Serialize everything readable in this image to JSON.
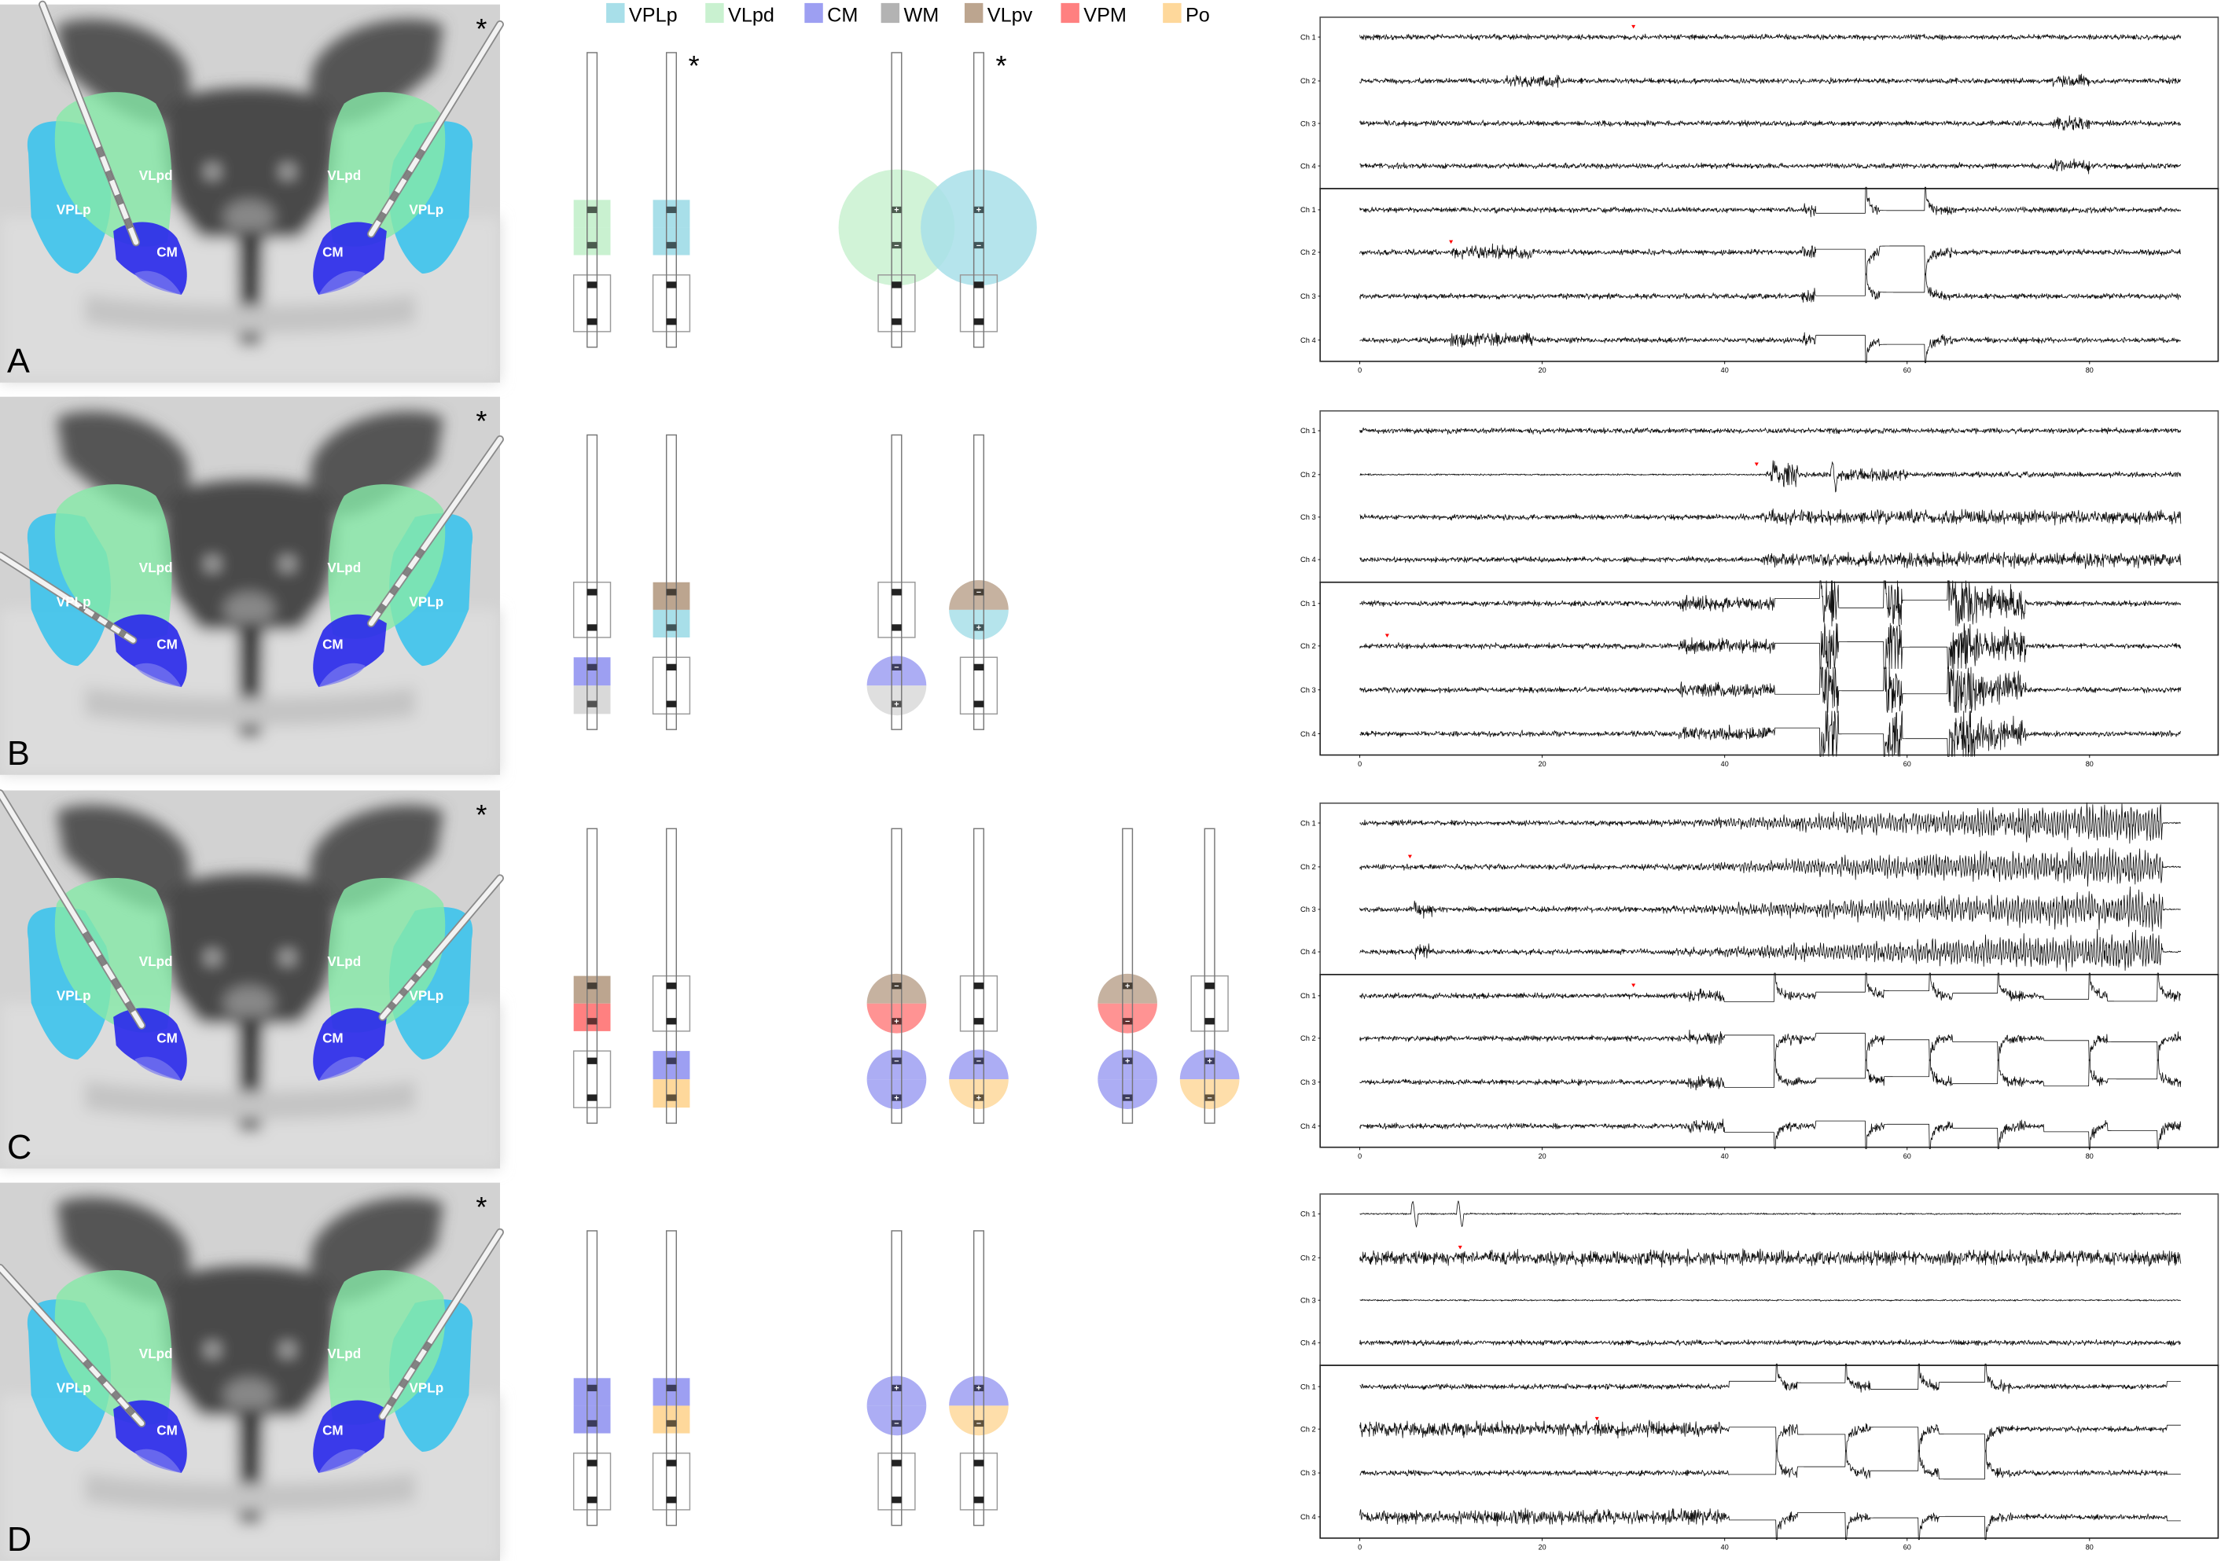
{
  "legend": [
    {
      "name": "VPLp",
      "color": "#a8dfe9"
    },
    {
      "name": "VLpd",
      "color": "#c9f1d0"
    },
    {
      "name": "CM",
      "color": "#9d9ff2"
    },
    {
      "name": "WM",
      "color": "#d9d9d9"
    },
    {
      "name": "VLpv",
      "color": "#bca58f"
    },
    {
      "name": "VPM",
      "color": "#ff8080"
    },
    {
      "name": "Po",
      "color": "#fed89b"
    }
  ],
  "legend_swatch_colors": {
    "WM": "#b3b3b3"
  },
  "brain_labels": {
    "vplp": "VPLp",
    "vlpd": "VLpd",
    "cm": "CM"
  },
  "brain_colors": {
    "vplp": "#3cc3ec",
    "vlpd": "#86eaa8",
    "cm": "#2b2bea"
  },
  "asterisk": "*",
  "polarity_symbols": {
    "plus": "+",
    "minus": "−"
  },
  "rows": [
    {
      "label": "A",
      "groups": [
        {
          "kind": "recording",
          "leads": [
            {
              "upper": [
                "VLpd",
                "VLpd"
              ],
              "lower": null
            },
            {
              "upper": [
                "VPLp",
                "VPLp"
              ],
              "lower": null,
              "asterisk": true
            }
          ]
        },
        {
          "kind": "stimulation",
          "field_size": "large",
          "leads": [
            {
              "upper": [
                "VLpd",
                "VLpd"
              ],
              "upper_polarity": [
                "+",
                "−"
              ],
              "lower": null
            },
            {
              "upper": [
                "VPLp",
                "VPLp"
              ],
              "upper_polarity": [
                "+",
                "−"
              ],
              "lower": null,
              "asterisk": true
            }
          ]
        }
      ]
    },
    {
      "label": "B",
      "groups": [
        {
          "kind": "recording",
          "leads": [
            {
              "upper": null,
              "lower": [
                "CM",
                "WM"
              ]
            },
            {
              "upper": [
                "VLpv",
                "VPLp"
              ],
              "lower": null
            }
          ]
        },
        {
          "kind": "stimulation",
          "leads": [
            {
              "upper": null,
              "lower": [
                "CM",
                "WM"
              ],
              "lower_polarity": [
                "−",
                "+"
              ]
            },
            {
              "upper": [
                "VLpv",
                "VPLp"
              ],
              "upper_polarity": [
                "−",
                "+"
              ],
              "lower": null
            }
          ]
        }
      ]
    },
    {
      "label": "C",
      "groups": [
        {
          "kind": "recording",
          "leads": [
            {
              "upper": [
                "VLpv",
                "VPM"
              ],
              "lower": null
            },
            {
              "upper": null,
              "lower": [
                "CM",
                "Po"
              ]
            }
          ]
        },
        {
          "kind": "stimulation",
          "leads": [
            {
              "upper": [
                "VLpv",
                "VPM"
              ],
              "upper_polarity": [
                "−",
                "+"
              ],
              "lower": [
                "CM",
                "CM"
              ],
              "lower_polarity": [
                "−",
                "+"
              ]
            },
            {
              "upper": null,
              "lower": [
                "CM",
                "Po"
              ],
              "lower_polarity": [
                "−",
                "+"
              ]
            }
          ]
        },
        {
          "kind": "stimulation",
          "leads": [
            {
              "upper": [
                "VLpv",
                "VPM"
              ],
              "upper_polarity": [
                "+",
                "−"
              ],
              "lower": [
                "CM",
                "CM"
              ],
              "lower_polarity": [
                "+",
                "−"
              ]
            },
            {
              "upper": null,
              "lower": [
                "CM",
                "Po"
              ],
              "lower_polarity": [
                "+",
                "−"
              ]
            }
          ]
        }
      ]
    },
    {
      "label": "D",
      "groups": [
        {
          "kind": "recording",
          "leads": [
            {
              "upper": [
                "CM",
                "CM"
              ],
              "lower": null
            },
            {
              "upper": [
                "CM",
                "Po"
              ],
              "lower": null
            }
          ]
        },
        {
          "kind": "stimulation",
          "leads": [
            {
              "upper": [
                "CM",
                "CM"
              ],
              "upper_polarity": [
                "+",
                "−"
              ],
              "lower": null
            },
            {
              "upper": [
                "CM",
                "Po"
              ],
              "upper_polarity": [
                "+",
                "−"
              ],
              "lower": null
            }
          ]
        }
      ]
    }
  ],
  "chart_data": [
    {
      "type": "line",
      "panel": "A",
      "subplots": [
        {
          "channels": [
            "Ch 1",
            "Ch 2",
            "Ch 3",
            "Ch 4"
          ],
          "marker": {
            "channel": 1,
            "time": 30
          },
          "events": [
            {
              "type": "burst",
              "start": 16,
              "end": 22,
              "channels": [
                2
              ]
            },
            {
              "type": "burst",
              "start": 76,
              "end": 80,
              "channels": [
                2,
                3,
                4
              ]
            }
          ]
        },
        {
          "channels": [
            "Ch 1",
            "Ch 2",
            "Ch 3",
            "Ch 4"
          ],
          "marker": {
            "channel": 2,
            "time": 10
          },
          "events": [
            {
              "type": "burst",
              "start": 10,
              "end": 19,
              "channels": [
                2,
                4
              ]
            },
            {
              "type": "burst",
              "start": 48.5,
              "end": 50
            },
            {
              "type": "flat",
              "start": 50,
              "end": 55.5
            },
            {
              "type": "flat",
              "start": 57,
              "end": 62
            },
            {
              "type": "pulse",
              "time": 55.5
            },
            {
              "type": "pulse",
              "time": 62
            }
          ]
        }
      ],
      "xticks": [
        0,
        20,
        40,
        60,
        80
      ],
      "xlim": [
        0,
        90
      ]
    },
    {
      "type": "line",
      "panel": "B",
      "subplots": [
        {
          "channels": [
            "Ch 1",
            "Ch 2",
            "Ch 3",
            "Ch 4"
          ],
          "marker": {
            "channel": 2,
            "time": 43.5
          },
          "events": [
            {
              "type": "quiet",
              "start": 0,
              "end": 44.5,
              "channels": [
                2
              ]
            },
            {
              "type": "artifact",
              "start": 45,
              "end": 48,
              "channels": [
                2
              ]
            },
            {
              "type": "spike",
              "time": 52,
              "channels": [
                2
              ]
            },
            {
              "type": "burst",
              "start": 52,
              "end": 60,
              "channels": [
                2
              ]
            },
            {
              "type": "burst",
              "start": 44,
              "end": 90,
              "channels": [
                3,
                4
              ]
            }
          ]
        },
        {
          "channels": [
            "Ch 1",
            "Ch 2",
            "Ch 3",
            "Ch 4"
          ],
          "marker": {
            "channel": 2,
            "time": 3
          },
          "events": [
            {
              "type": "burst",
              "start": 35,
              "end": 45.5
            },
            {
              "type": "flat",
              "start": 45.5,
              "end": 50.5
            },
            {
              "type": "artifact",
              "start": 50.5,
              "end": 52.5
            },
            {
              "type": "flat",
              "start": 52.5,
              "end": 57.5
            },
            {
              "type": "artifact",
              "start": 57.5,
              "end": 59.5
            },
            {
              "type": "flat",
              "start": 59.5,
              "end": 64.5
            },
            {
              "type": "pulse",
              "time": 50.5
            },
            {
              "type": "pulse",
              "time": 57.5
            },
            {
              "type": "pulse",
              "time": 64.5
            },
            {
              "type": "artifact",
              "start": 64.5,
              "end": 73
            }
          ]
        }
      ],
      "xticks": [
        0,
        20,
        40,
        60,
        80
      ],
      "xlim": [
        0,
        90
      ]
    },
    {
      "type": "line",
      "panel": "C",
      "subplots": [
        {
          "channels": [
            "Ch 1",
            "Ch 2",
            "Ch 3",
            "Ch 4"
          ],
          "marker": {
            "channel": 2,
            "time": 5.5
          },
          "events": [
            {
              "type": "burst",
              "start": 6,
              "end": 8,
              "channels": [
                3,
                4
              ]
            },
            {
              "type": "seizure",
              "start": 30,
              "end": 88
            },
            {
              "type": "quiet",
              "start": 88,
              "end": 90
            }
          ]
        },
        {
          "channels": [
            "Ch 1",
            "Ch 2",
            "Ch 3",
            "Ch 4"
          ],
          "marker": {
            "channel": 1,
            "time": 30
          },
          "events": [
            {
              "type": "burst",
              "start": 36,
              "end": 40
            },
            {
              "type": "flat",
              "start": 40,
              "end": 45.5
            },
            {
              "type": "pulse",
              "time": 45.5
            },
            {
              "type": "flat",
              "start": 50,
              "end": 55.5
            },
            {
              "type": "pulse",
              "time": 55.5
            },
            {
              "type": "flat",
              "start": 57.5,
              "end": 62.5
            },
            {
              "type": "pulse",
              "time": 62.5
            },
            {
              "type": "flat",
              "start": 65,
              "end": 70
            },
            {
              "type": "pulse",
              "time": 70
            },
            {
              "type": "flat",
              "start": 75,
              "end": 80
            },
            {
              "type": "pulse",
              "time": 80
            },
            {
              "type": "flat",
              "start": 82,
              "end": 87.5
            },
            {
              "type": "pulse",
              "time": 87.5
            }
          ]
        }
      ],
      "xticks": [
        0,
        20,
        40,
        60,
        80
      ],
      "xlim": [
        0,
        90
      ]
    },
    {
      "type": "line",
      "panel": "D",
      "subplots": [
        {
          "channels": [
            "Ch 1",
            "Ch 2",
            "Ch 3",
            "Ch 4"
          ],
          "marker": {
            "channel": 2,
            "time": 11
          },
          "events": [
            {
              "type": "quiet",
              "start": 0,
              "end": 90,
              "channels": [
                1,
                3
              ]
            },
            {
              "type": "spike",
              "time": 6,
              "channels": [
                1
              ]
            },
            {
              "type": "spike",
              "time": 11,
              "channels": [
                1
              ]
            },
            {
              "type": "burst",
              "start": 0,
              "end": 90,
              "channels": [
                2
              ]
            }
          ]
        },
        {
          "channels": [
            "Ch 1",
            "Ch 2",
            "Ch 3",
            "Ch 4"
          ],
          "marker": {
            "channel": 2,
            "time": 26
          },
          "events": [
            {
              "type": "burst",
              "start": 0,
              "end": 40,
              "channels": [
                2,
                4
              ]
            },
            {
              "type": "flat",
              "start": 40.5,
              "end": 45.7
            },
            {
              "type": "pulse",
              "time": 45.7
            },
            {
              "type": "flat",
              "start": 48,
              "end": 53.3
            },
            {
              "type": "pulse",
              "time": 53.3
            },
            {
              "type": "flat",
              "start": 56,
              "end": 61.3
            },
            {
              "type": "pulse",
              "time": 61.3
            },
            {
              "type": "flat",
              "start": 63.5,
              "end": 68.6
            },
            {
              "type": "pulse",
              "time": 68.6
            },
            {
              "type": "flat",
              "start": 88.5,
              "end": 90
            }
          ]
        }
      ],
      "xticks": [
        0,
        20,
        40,
        60,
        80
      ],
      "xlim": [
        0,
        90
      ]
    }
  ]
}
